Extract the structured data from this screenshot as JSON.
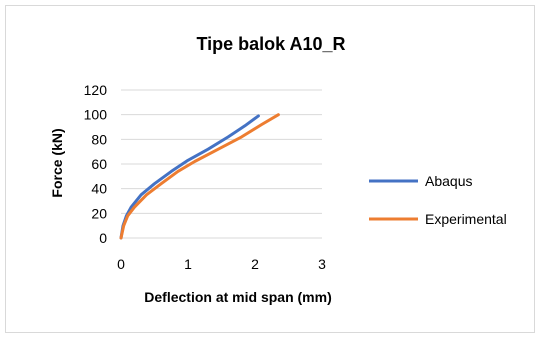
{
  "chart_data": {
    "type": "line",
    "title": "Tipe balok A10_R",
    "xlabel": "Deflection at mid span (mm)",
    "ylabel": "Force (kN)",
    "xlim": [
      0,
      3
    ],
    "ylim": [
      0,
      120
    ],
    "x_ticks": [
      "0",
      "1",
      "2",
      "3"
    ],
    "y_ticks": [
      "0",
      "20",
      "40",
      "60",
      "80",
      "100",
      "120"
    ],
    "grid": "horizontal",
    "legend_position": "right",
    "series": [
      {
        "name": "Abaqus",
        "color": "#4472c4",
        "points": [
          [
            0,
            0
          ],
          [
            0.03,
            10
          ],
          [
            0.08,
            18
          ],
          [
            0.15,
            25
          ],
          [
            0.3,
            35
          ],
          [
            0.5,
            44
          ],
          [
            0.75,
            54
          ],
          [
            1.0,
            63
          ],
          [
            1.3,
            72
          ],
          [
            1.6,
            82
          ],
          [
            1.85,
            91
          ],
          [
            2.05,
            99
          ]
        ]
      },
      {
        "name": "Experimental",
        "color": "#ed7d31",
        "points": [
          [
            0,
            0
          ],
          [
            0.04,
            10
          ],
          [
            0.1,
            18
          ],
          [
            0.2,
            25
          ],
          [
            0.38,
            35
          ],
          [
            0.6,
            44
          ],
          [
            0.85,
            54
          ],
          [
            1.1,
            62
          ],
          [
            1.45,
            72
          ],
          [
            1.8,
            82
          ],
          [
            2.1,
            92
          ],
          [
            2.35,
            100
          ]
        ]
      }
    ]
  }
}
